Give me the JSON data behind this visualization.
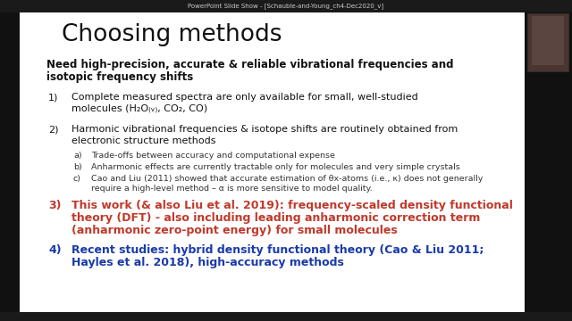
{
  "title": "Choosing methods",
  "subtitle_line1": "Need high-precision, accurate & reliable vibrational frequencies and",
  "subtitle_line2": "isotopic frequency shifts",
  "window_title": "PowerPoint Slide Show - [Schauble-and-Young_ch4-Dec2020_v]",
  "items": [
    {
      "num": "1)",
      "color": "#111111",
      "line1": "Complete measured spectra are only available for small, well-studied",
      "line2": "molecules (H₂O₍ᵥ₎, CO₂, CO)"
    },
    {
      "num": "2)",
      "color": "#111111",
      "line1": "Harmonic vibrational frequencies & isotope shifts are routinely obtained from",
      "line2": "electronic structure methods"
    },
    {
      "num": "3)",
      "color": "#c0392b",
      "line1": "This work (& also Liu et al. 2019): frequency-scaled density functional",
      "line2": "theory (DFT) - also including leading anharmonic correction term",
      "line3": "(anharmonic zero-point energy) for small molecules"
    },
    {
      "num": "4)",
      "color": "#1a3aaa",
      "line1": "Recent studies: hybrid density functional theory (Cao & Liu 2011;",
      "line2": "Hayles et al. 2018), high-accuracy methods"
    }
  ],
  "subitems": [
    {
      "label": "a)",
      "text": "Trade-offs between accuracy and computational expense"
    },
    {
      "label": "b)",
      "text": "Anharmonic effects are currently tractable only for molecules and very simple crystals"
    },
    {
      "label": "c)",
      "line1": "Cao and Liu (2011) showed that accurate estimation of θx-atoms (i.e., κ) does not generally",
      "line2": "require a high-level method – α is more sensitive to model quality."
    }
  ],
  "bg_color": "#ffffff",
  "outer_bg": "#1a1a1a",
  "slide_bg": "#f0f0f0",
  "title_color": "#111111",
  "subtitle_color": "#111111",
  "body_color": "#111111",
  "subitem_color": "#333333",
  "webcam_bg": "#111111"
}
